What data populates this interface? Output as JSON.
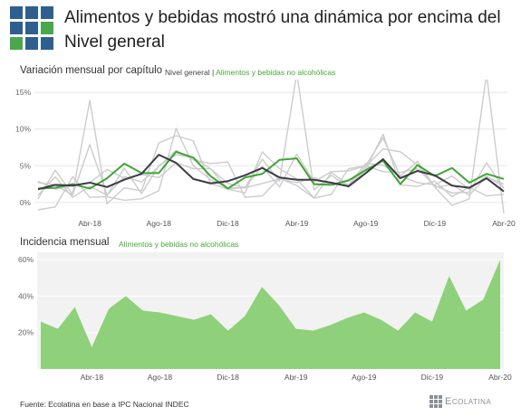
{
  "title": "Alimentos y bebidas mostró una dinámica por encima del Nivel general",
  "logo_colors": [
    "#2f5f8f",
    "#2f5f8f",
    "#2f5f8f",
    "#2f5f8f",
    "#2f5f8f",
    "#4aa84a",
    "#4aa84a",
    "#2f5f8f",
    "#2f5f8f"
  ],
  "chart1_subtitle": "Variación mensual por capítulo",
  "chart1_legend_general": "Nivel general",
  "chart1_legend_sep": " | ",
  "chart1_legend_food": "Alimentos y bebidas no alcohólicas",
  "chart2_subtitle": "Incidencia mensual",
  "chart2_legend": "Alimentos y bebidas no alcohólicas",
  "source": "Fuente: Ecolatina en base a IPC Nacional INDEC",
  "brand": "Ecolatina",
  "colors": {
    "general": "#3c3c46",
    "food": "#3fa535",
    "other": "#cccccc",
    "area": "#8fd07a"
  },
  "chart_data": [
    {
      "type": "line",
      "title": "Variación mensual por capítulo",
      "x_tick_labels": [
        "Abr-18",
        "Ago-18",
        "Dic-18",
        "Abr-19",
        "Ago-19",
        "Dic-19",
        "Abr-20"
      ],
      "x_tick_index": [
        3,
        7,
        11,
        15,
        19,
        23,
        27
      ],
      "ylim": [
        -1,
        16
      ],
      "yticks": [
        0,
        5,
        10,
        15
      ],
      "ytick_labels": [
        "0%",
        "5%",
        "10%",
        "15%"
      ],
      "grid": true,
      "series": [
        {
          "name": "Nivel general",
          "values": [
            1.8,
            2.4,
            2.3,
            2.7,
            2.1,
            3.1,
            3.9,
            6.5,
            5.4,
            3.2,
            2.6,
            2.9,
            3.7,
            4.7,
            3.4,
            3.1,
            3.1,
            2.7,
            2.2,
            4.0,
            5.9,
            3.3,
            4.3,
            3.7,
            2.3,
            2.0,
            3.3,
            1.5
          ]
        },
        {
          "name": "Alimentos y bebidas no alcohólicas",
          "values": [
            1.9,
            2.0,
            2.5,
            1.9,
            3.3,
            5.3,
            4.0,
            4.0,
            6.9,
            6.1,
            3.6,
            1.9,
            3.4,
            3.9,
            5.8,
            6.0,
            2.5,
            2.4,
            3.0,
            4.4,
            5.7,
            2.5,
            5.1,
            3.6,
            4.7,
            2.7,
            3.9,
            3.2
          ]
        },
        {
          "values": [
            -1.0,
            -0.6,
            3.5,
            0.7,
            0.8,
            0.3,
            0.5,
            1.6,
            10.1,
            5.0,
            3.1,
            2.0,
            2.0,
            5.9,
            2.9,
            17.6,
            1.7,
            3.7,
            2.1,
            4.5,
            9.3,
            2.4,
            2.2,
            2.9,
            0.8,
            2.1,
            0.9,
            1.1
          ]
        },
        {
          "values": [
            0.5,
            4.4,
            1.1,
            13.9,
            -0.2,
            2.0,
            1.6,
            8.1,
            9.1,
            8.4,
            2.6,
            1.8,
            1.3,
            6.9,
            4.6,
            3.2,
            0.6,
            1.1,
            4.6,
            5.0,
            8.8,
            3.6,
            5.6,
            2.1,
            -0.4,
            0.5,
            17.5,
            -1.5
          ]
        },
        {
          "values": [
            2.7,
            2.4,
            1.0,
            7.9,
            1.0,
            4.7,
            1.2,
            5.0,
            6.5,
            6.1,
            4.6,
            1.8,
            2.1,
            4.9,
            2.1,
            6.6,
            2.8,
            4.2,
            4.3,
            5.0,
            4.2,
            4.1,
            4.6,
            2.3,
            1.3,
            1.4,
            5.4,
            1.9
          ]
        },
        {
          "values": [
            1.0,
            3.5,
            0.7,
            2.2,
            1.0,
            3.5,
            2.8,
            4.9,
            7.1,
            5.8,
            5.3,
            5.5,
            0.7,
            0.9,
            3.3,
            2.3,
            0.6,
            4.1,
            2.3,
            4.9,
            7.3,
            6.9,
            5.1,
            2.1,
            2.4,
            1.0,
            3.5,
            2.5
          ]
        },
        {
          "values": [
            2.9,
            1.8,
            2.3,
            2.7,
            4.5,
            3.3,
            3.8,
            3.4,
            5.4,
            4.6,
            4.6,
            2.6,
            2.0,
            2.6,
            3.2,
            2.7,
            3.4,
            2.4,
            2.4,
            5.3,
            5.1,
            3.6,
            2.7,
            2.4,
            3.6,
            1.8,
            3.6,
            2.1
          ]
        }
      ]
    },
    {
      "type": "area",
      "title": "Incidencia mensual",
      "x_tick_labels": [
        "Abr-18",
        "Ago-18",
        "Dic-18",
        "Abr-19",
        "Ago-19",
        "Dic-19",
        "Abr-20"
      ],
      "x_tick_index": [
        3,
        7,
        11,
        15,
        19,
        23,
        27
      ],
      "ylim": [
        0,
        64
      ],
      "yticks": [
        20,
        40,
        60
      ],
      "ytick_labels": [
        "20%",
        "40%",
        "60%"
      ],
      "grid": true,
      "series": [
        {
          "name": "Alimentos y bebidas no alcohólicas",
          "values": [
            26,
            22,
            34,
            12,
            33,
            40,
            32,
            31,
            29,
            27,
            30,
            21,
            29,
            45,
            35,
            22,
            21,
            24,
            28,
            31,
            27,
            21,
            31,
            26,
            51,
            32,
            38,
            60
          ]
        }
      ]
    }
  ]
}
